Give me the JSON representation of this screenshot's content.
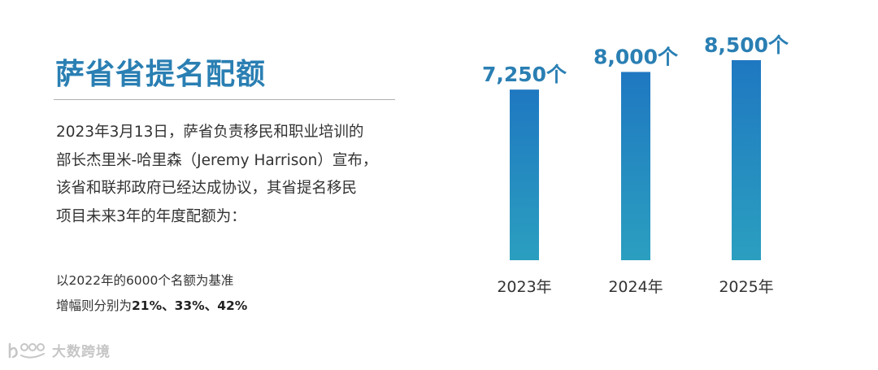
{
  "header": {
    "title": "萨省省提名配额"
  },
  "body": {
    "paragraph_lines": [
      "2023年3月13日，萨省负责移民和职业培训的",
      "部长杰里米-哈里森（Jeremy Harrison）宣布，",
      "该省和联邦政府已经达成协议，其省提名移民",
      "项目未来3年的年度配额为："
    ]
  },
  "note": {
    "line1": "以2022年的6000个名额为基准",
    "line2_prefix": "增幅则分别为",
    "line2_bold": "21%、33%、42%"
  },
  "watermark": {
    "text": "大数跨境",
    "icon": "watermark-logo-icon"
  },
  "colors": {
    "accent": "#2a7fb3",
    "bar_top": "#1f78c1",
    "bar_bottom": "#2b9fc0"
  },
  "chart_data": {
    "type": "bar",
    "categories": [
      "2023年",
      "2024年",
      "2025年"
    ],
    "values": [
      7250,
      8000,
      8500
    ],
    "data_labels": [
      "7,250个",
      "8,000个",
      "8,500个"
    ],
    "title": "",
    "xlabel": "",
    "ylabel": "",
    "ylim": [
      0,
      8500
    ],
    "grid": false,
    "legend": "none"
  }
}
